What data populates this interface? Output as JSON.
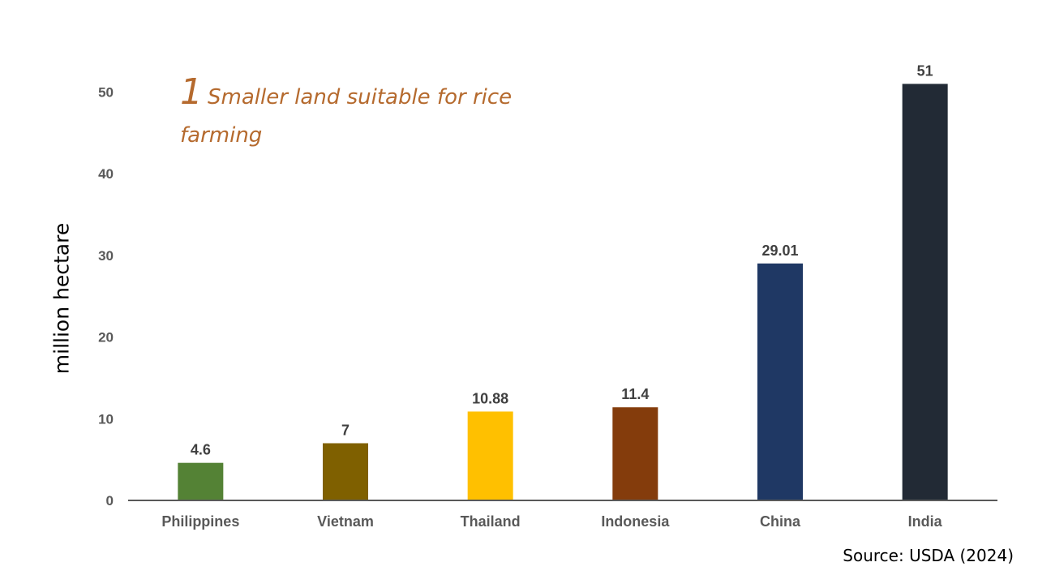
{
  "slide": {
    "heading_number": "1",
    "heading_text": "Smaller land suitable for rice farming",
    "source": "Source: USDA (2024)"
  },
  "chart_data": {
    "type": "bar",
    "title": "",
    "xlabel": "",
    "ylabel": "million hectare",
    "categories": [
      "Philippines",
      "Vietnam",
      "Thailand",
      "Indonesia",
      "China",
      "India"
    ],
    "values": [
      4.6,
      7,
      10.88,
      11.4,
      29.01,
      51
    ],
    "value_labels": [
      "4.6",
      "7",
      "10.88",
      "11.4",
      "29.01",
      "51"
    ],
    "bar_colors": [
      "#548235",
      "#7F6000",
      "#FFC000",
      "#843C0C",
      "#1F3864",
      "#222A35"
    ],
    "yticks": [
      0,
      10,
      20,
      30,
      40,
      50
    ],
    "ylim": [
      0,
      52
    ],
    "grid": false,
    "legend": "none"
  }
}
